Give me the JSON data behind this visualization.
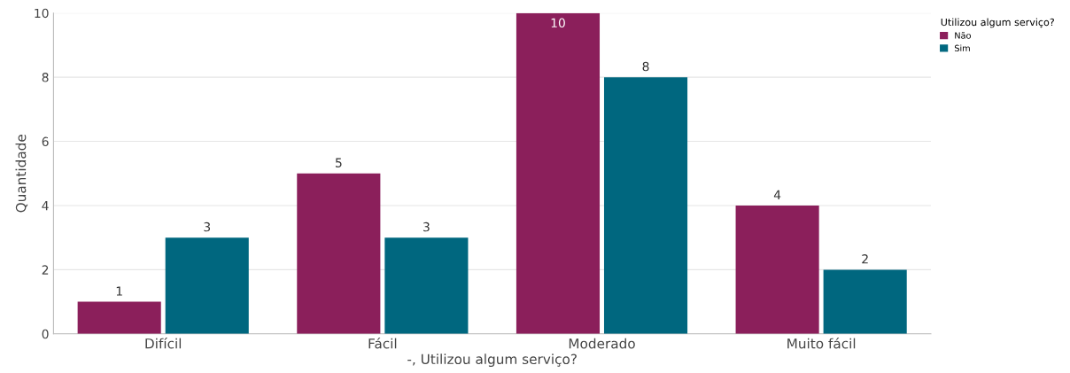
{
  "chart_data": {
    "type": "bar",
    "xlabel": "-, Utilizou algum serviço?",
    "ylabel": "Quantidade",
    "legend_title": "Utilizou algum serviço?",
    "categories": [
      "Difícil",
      "Fácil",
      "Moderado",
      "Muito fácil"
    ],
    "series": [
      {
        "name": "Não",
        "color": "#8b1f5b",
        "values": [
          1,
          5,
          10,
          4
        ]
      },
      {
        "name": "Sim",
        "color": "#00677f",
        "values": [
          3,
          3,
          8,
          2
        ]
      }
    ],
    "ylim": [
      0,
      10
    ],
    "yticks": [
      0,
      2,
      4,
      6,
      8,
      10
    ],
    "grid": "y",
    "legend": "top right",
    "data_labels": true
  }
}
